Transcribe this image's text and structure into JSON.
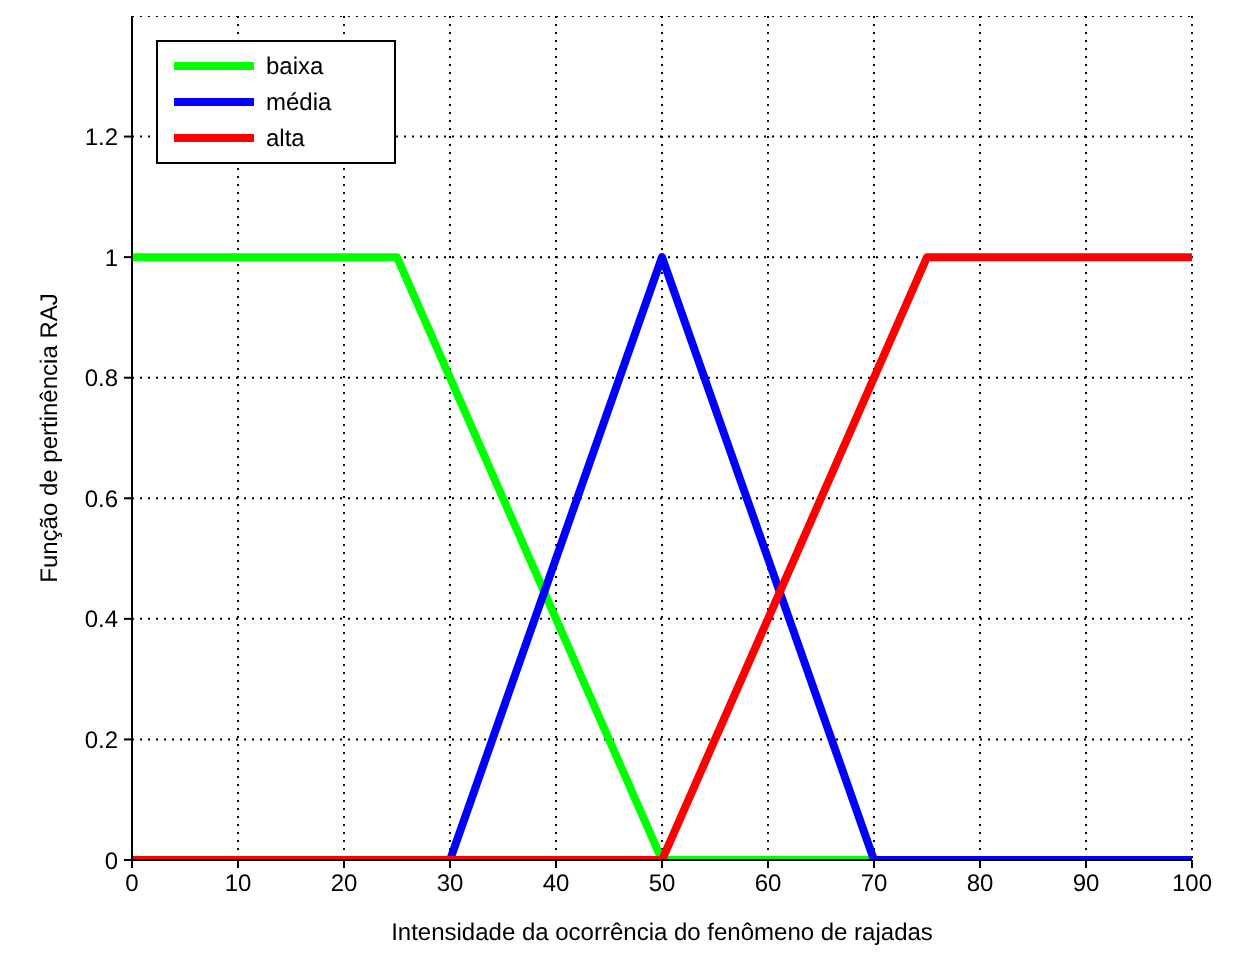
{
  "chart_data": {
    "type": "line",
    "xlabel": "Intensidade da ocorrência do fenômeno de rajadas",
    "ylabel": "Função de pertinência RAJ",
    "series": [
      {
        "name": "baixa",
        "color": "#00ff00",
        "x": [
          0,
          25,
          50,
          100
        ],
        "values": [
          1,
          1,
          0,
          0
        ]
      },
      {
        "name": "média",
        "color": "#0000ff",
        "x": [
          0,
          30,
          50,
          70,
          100
        ],
        "values": [
          0,
          0,
          1,
          0,
          0
        ]
      },
      {
        "name": "alta",
        "color": "#ff0000",
        "x": [
          0,
          50,
          75,
          100
        ],
        "values": [
          0,
          0,
          1,
          1
        ]
      }
    ],
    "xlim": [
      0,
      100
    ],
    "xticks": [
      0,
      10,
      20,
      30,
      40,
      50,
      60,
      70,
      80,
      90,
      100
    ],
    "ylim": [
      0,
      1.4
    ],
    "yticks": [
      0,
      0.2,
      0.4,
      0.6,
      0.8,
      1,
      1.2
    ],
    "grid": true,
    "legend": "top left",
    "marker": "none",
    "line_style": "solid"
  }
}
